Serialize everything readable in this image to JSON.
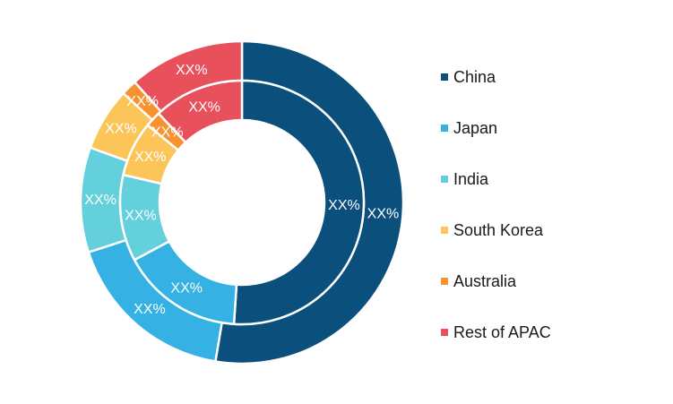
{
  "chart_data": {
    "type": "pie",
    "variant": "nested-donut",
    "title": "",
    "legend_placement": "right",
    "categories": [
      "China",
      "Japan",
      "India",
      "South Korea",
      "Australia",
      "Rest of APAC"
    ],
    "colors": [
      "#0b4f7c",
      "#35b2e3",
      "#63d0dc",
      "#fbc55a",
      "#f7922e",
      "#e8515b"
    ],
    "series": [
      {
        "ring": "outer",
        "values": [
          50,
          16.5,
          10,
          6,
          1.5,
          11
        ],
        "labels": [
          "XX%",
          "XX%",
          "XX%",
          "XX%",
          "XX%",
          "XX%"
        ]
      },
      {
        "ring": "inner",
        "values": [
          49,
          15.5,
          11,
          7,
          2,
          11.5
        ],
        "labels": [
          "XX%",
          "XX%",
          "XX%",
          "XX%",
          "XX%",
          "XX%"
        ]
      }
    ]
  }
}
